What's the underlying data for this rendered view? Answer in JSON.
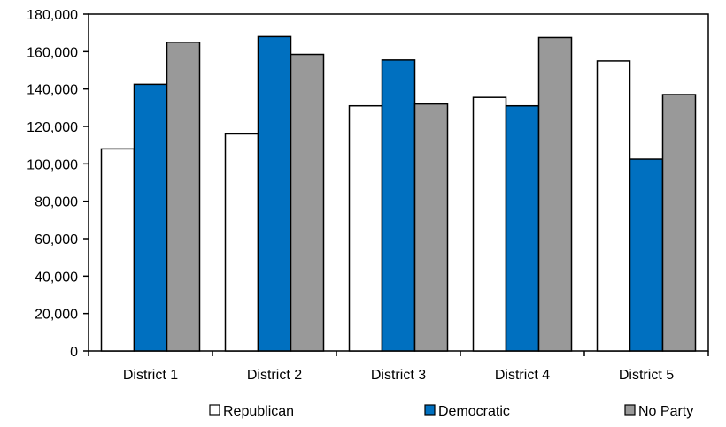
{
  "chart_data": {
    "type": "bar",
    "title": "",
    "xlabel": "",
    "ylabel": "",
    "categories": [
      "District 1",
      "District 2",
      "District 3",
      "District 4",
      "District 5"
    ],
    "series": [
      {
        "name": "Republican",
        "color": "#ffffff",
        "values": [
          108000,
          116000,
          131000,
          135500,
          155000
        ]
      },
      {
        "name": "Democratic",
        "color": "#0070c0",
        "values": [
          142500,
          168000,
          155500,
          131000,
          102500
        ]
      },
      {
        "name": "No Party",
        "color": "#999999",
        "values": [
          165000,
          158500,
          132000,
          167500,
          137000
        ]
      }
    ],
    "ylim": [
      0,
      180000
    ],
    "yticks": [
      0,
      20000,
      40000,
      60000,
      80000,
      100000,
      120000,
      140000,
      160000,
      180000
    ],
    "ytick_labels": [
      "0",
      "20,000",
      "40,000",
      "60,000",
      "80,000",
      "100,000",
      "120,000",
      "140,000",
      "160,000",
      "180,000"
    ],
    "grid": false,
    "legend": "bottom"
  }
}
